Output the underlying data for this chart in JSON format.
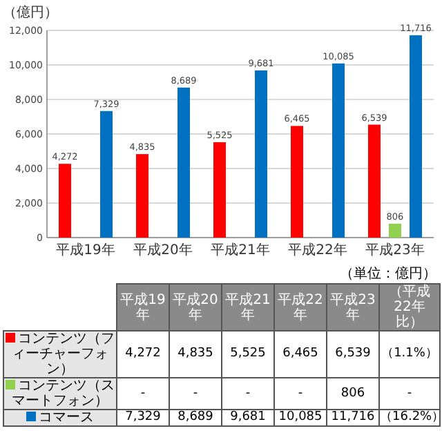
{
  "chart_data": {
    "type": "bar",
    "ylabel": "（億円）",
    "categories": [
      "平成19年",
      "平成20年",
      "平成21年",
      "平成22年",
      "平成23年"
    ],
    "series": [
      {
        "name": "コンテンツ（フィーチャーフォン）",
        "color": "#ff0000",
        "values": [
          4272,
          4835,
          5525,
          6465,
          6539
        ],
        "value_labels": [
          "4,272",
          "4,835",
          "5,525",
          "6,465",
          "6,539"
        ]
      },
      {
        "name": "コンテンツ（スマートフォン）",
        "color": "#92d050",
        "values": [
          null,
          null,
          null,
          null,
          806
        ],
        "value_labels": [
          "-",
          "-",
          "-",
          "-",
          "806"
        ]
      },
      {
        "name": "コマース",
        "color": "#0070c0",
        "values": [
          7329,
          8689,
          9681,
          10085,
          11716
        ],
        "value_labels": [
          "7,329",
          "8,689",
          "9,681",
          "10,085",
          "11,716"
        ]
      }
    ],
    "ylim": [
      0,
      12000
    ],
    "yticks": [
      {
        "value": 0,
        "label": "0"
      },
      {
        "value": 2000,
        "label": "2,000"
      },
      {
        "value": 4000,
        "label": "4,000"
      },
      {
        "value": 6000,
        "label": "6,000"
      },
      {
        "value": 8000,
        "label": "8,000"
      },
      {
        "value": 10000,
        "label": "10,000"
      },
      {
        "value": 12000,
        "label": "12,000"
      }
    ],
    "grid": "y",
    "legend": "bottom",
    "annotations": [
      "（単位：億円）",
      "（平成22年比）",
      "（1.1%）",
      "-",
      "（16.2%）"
    ]
  }
}
